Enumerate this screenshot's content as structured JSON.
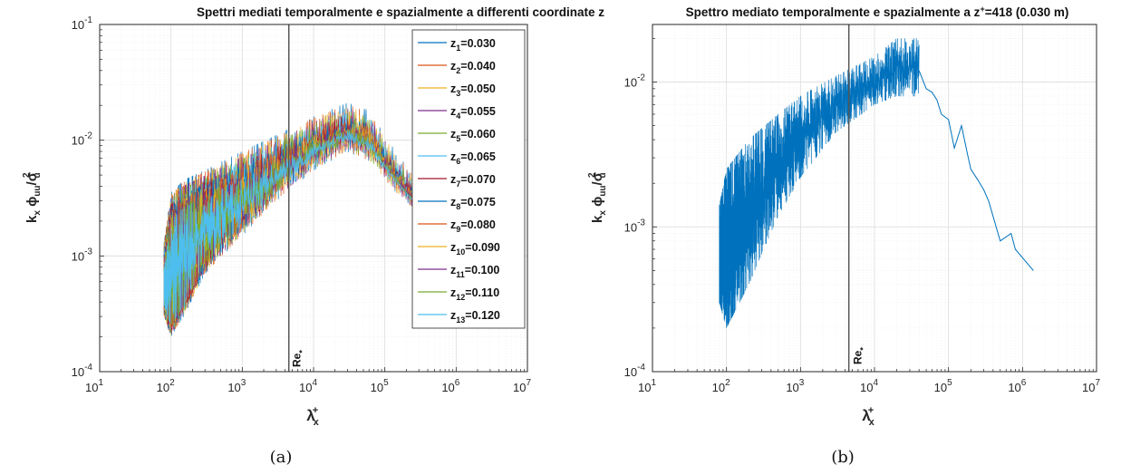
{
  "chart_data": [
    {
      "type": "line",
      "title": "Spettri mediati temporalmente e spazialmente a differenti coordinate z",
      "xlabel": {
        "base": "λ",
        "sub": "x",
        "sup": "+"
      },
      "ylabel": {
        "text": "k_x φ_uu / σ_u^2"
      },
      "x_scale": "log",
      "y_scale": "log",
      "xlim": [
        10,
        10000000
      ],
      "ylim": [
        0.0001,
        0.1
      ],
      "x_ticks": [
        {
          "base": "10",
          "exp": "1"
        },
        {
          "base": "10",
          "exp": "2"
        },
        {
          "base": "10",
          "exp": "3"
        },
        {
          "base": "10",
          "exp": "4"
        },
        {
          "base": "10",
          "exp": "5"
        },
        {
          "base": "10",
          "exp": "6"
        },
        {
          "base": "10",
          "exp": "7"
        }
      ],
      "y_ticks": [
        {
          "base": "10",
          "exp": "-4"
        },
        {
          "base": "10",
          "exp": "-3"
        },
        {
          "base": "10",
          "exp": "-2"
        },
        {
          "base": "10",
          "exp": "-1"
        }
      ],
      "grid": true,
      "legend_position": "top-right",
      "vline": {
        "x": 4500,
        "label": "Re",
        "label_sub": "*"
      },
      "series": [
        {
          "sub": "1",
          "value": "0.030",
          "color": "#0072BD"
        },
        {
          "sub": "2",
          "value": "0.040",
          "color": "#D95319"
        },
        {
          "sub": "3",
          "value": "0.050",
          "color": "#EDB120"
        },
        {
          "sub": "4",
          "value": "0.055",
          "color": "#7E2F8E"
        },
        {
          "sub": "5",
          "value": "0.060",
          "color": "#77AC30"
        },
        {
          "sub": "6",
          "value": "0.065",
          "color": "#4DBEEE"
        },
        {
          "sub": "7",
          "value": "0.070",
          "color": "#A2142F"
        },
        {
          "sub": "8",
          "value": "0.075",
          "color": "#0072BD"
        },
        {
          "sub": "9",
          "value": "0.080",
          "color": "#D95319"
        },
        {
          "sub": "10",
          "value": "0.090",
          "color": "#EDB120"
        },
        {
          "sub": "11",
          "value": "0.100",
          "color": "#7E2F8E"
        },
        {
          "sub": "12",
          "value": "0.110",
          "color": "#77AC30"
        },
        {
          "sub": "13",
          "value": "0.120",
          "color": "#4DBEEE"
        }
      ],
      "envelope": {
        "x": [
          80,
          100,
          150,
          300,
          1000,
          3000,
          10000,
          30000,
          60000,
          100000,
          200000,
          300000,
          400000
        ],
        "upper": [
          0.0013,
          0.0035,
          0.0045,
          0.0055,
          0.008,
          0.011,
          0.016,
          0.021,
          0.018,
          0.011,
          0.006,
          0.0045,
          0.0038
        ],
        "lower": [
          0.0003,
          0.0002,
          0.0003,
          0.0007,
          0.0015,
          0.003,
          0.0055,
          0.008,
          0.0065,
          0.0045,
          0.0028,
          0.0022,
          0.0018
        ]
      },
      "caption": "(a)"
    },
    {
      "type": "line",
      "title": "Spettro mediato temporalmente e spazialmente a z",
      "title_sup": "+",
      "title_suffix": "=418 (0.030 m)",
      "xlabel": {
        "base": "λ",
        "sub": "x",
        "sup": "+"
      },
      "ylabel": {
        "text": "k_x φ_uu / σ_u^2"
      },
      "x_scale": "log",
      "y_scale": "log",
      "xlim": [
        10,
        10000000
      ],
      "ylim": [
        0.0001,
        0.025
      ],
      "x_ticks": [
        {
          "base": "10",
          "exp": "1"
        },
        {
          "base": "10",
          "exp": "2"
        },
        {
          "base": "10",
          "exp": "3"
        },
        {
          "base": "10",
          "exp": "4"
        },
        {
          "base": "10",
          "exp": "5"
        },
        {
          "base": "10",
          "exp": "6"
        },
        {
          "base": "10",
          "exp": "7"
        }
      ],
      "y_ticks": [
        {
          "base": "10",
          "exp": "-4"
        },
        {
          "base": "10",
          "exp": "-3"
        },
        {
          "base": "10",
          "exp": "-2"
        }
      ],
      "grid": true,
      "vline": {
        "x": 4500,
        "label": "Re",
        "label_sub": "*"
      },
      "series_color": "#0072BD",
      "envelope": {
        "x": [
          80,
          100,
          200,
          500,
          1000,
          3000,
          10000,
          20000,
          40000
        ],
        "upper": [
          0.0014,
          0.0025,
          0.004,
          0.006,
          0.008,
          0.011,
          0.015,
          0.02,
          0.02
        ],
        "lower": [
          0.0003,
          0.0002,
          0.0004,
          0.0012,
          0.0022,
          0.0045,
          0.007,
          0.008,
          0.008
        ]
      },
      "tail": {
        "x": [
          40000,
          50000,
          60000,
          70000,
          80000,
          100000,
          120000,
          150000,
          180000,
          200000,
          250000,
          300000,
          350000,
          500000,
          700000,
          800000,
          1400000
        ],
        "y": [
          0.012,
          0.009,
          0.0085,
          0.0075,
          0.006,
          0.0055,
          0.0035,
          0.005,
          0.0032,
          0.0025,
          0.0021,
          0.0018,
          0.0015,
          0.0008,
          0.0009,
          0.0007,
          0.0005
        ]
      },
      "caption": "(b)"
    }
  ]
}
